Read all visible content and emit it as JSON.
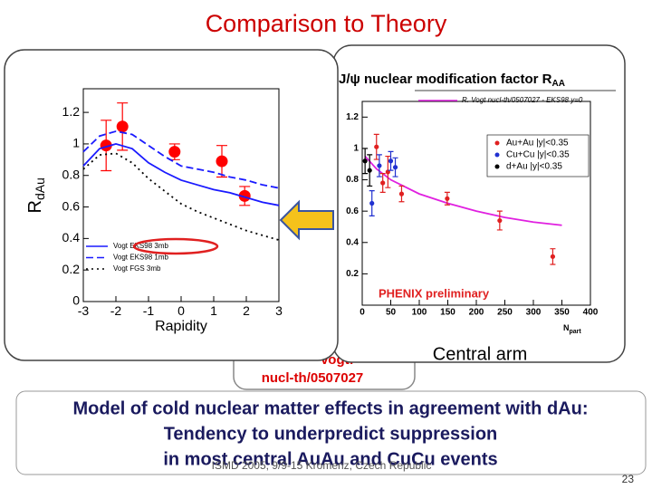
{
  "slide": {
    "title": "Comparison to Theory",
    "note_lines": [
      "Vogt:",
      "nucl-th/0507027"
    ],
    "arm": "Central arm",
    "body": [
      "Model of cold nuclear matter effects in agreement with dAu:",
      "Tendency to underpredict suppression",
      "in most central AuAu and CuCu events"
    ],
    "footer": "ISMD 2005, 9/9-15 Kromeriz, Czech Republic",
    "page": "23"
  },
  "chart_data": [
    {
      "type": "scatter",
      "y_label": "R",
      "y_label_sub": "dAu",
      "x_label": "Rapidity",
      "xlim": [
        -3,
        3
      ],
      "xticks": [
        -3,
        -2,
        -1,
        0,
        1,
        2,
        3
      ],
      "ylim": [
        0,
        1.35
      ],
      "yticks": [
        0,
        0.2,
        0.4,
        0.6,
        0.8,
        1,
        1.2
      ],
      "series": [
        {
          "color": "#ff0000",
          "style": "points",
          "x": [
            -2.3,
            -1.8,
            -0.2,
            1.25,
            1.95
          ],
          "values": [
            0.99,
            1.11,
            0.95,
            0.89,
            0.67
          ],
          "errors": [
            0.16,
            0.15,
            0.05,
            0.1,
            0.06
          ]
        },
        {
          "name": "Vogt EKS98 3mb",
          "color": "#1a1aff",
          "style": "solid",
          "x": [
            -3,
            -2.5,
            -2,
            -1.5,
            -1,
            -0.5,
            0,
            0.5,
            1,
            1.5,
            2,
            2.5,
            3
          ],
          "values": [
            0.86,
            0.97,
            1.0,
            0.97,
            0.88,
            0.82,
            0.77,
            0.74,
            0.71,
            0.69,
            0.66,
            0.63,
            0.61
          ]
        },
        {
          "name": "Vogt EKS98 1mb",
          "color": "#1a1aff",
          "style": "dashed",
          "x": [
            -3,
            -2.5,
            -2,
            -1.5,
            -1,
            -0.5,
            0,
            0.5,
            1,
            1.5,
            2,
            2.5,
            3
          ],
          "values": [
            0.95,
            1.05,
            1.08,
            1.06,
            0.99,
            0.92,
            0.86,
            0.84,
            0.82,
            0.79,
            0.77,
            0.74,
            0.72
          ]
        },
        {
          "name": "Vogt FGS 3mb",
          "color": "#000000",
          "style": "dotted",
          "x": [
            -3,
            -2.5,
            -2,
            -1.5,
            -1,
            -0.5,
            0,
            0.5,
            1,
            1.5,
            2,
            2.5,
            3
          ],
          "values": [
            0.84,
            0.93,
            0.94,
            0.88,
            0.78,
            0.7,
            0.62,
            0.57,
            0.53,
            0.49,
            0.45,
            0.42,
            0.39
          ]
        }
      ]
    },
    {
      "type": "scatter",
      "title": "J/ψ nuclear modification factor R",
      "title_sub": "AA",
      "x_label": "N",
      "x_label_sub": "part",
      "annotation": "PHENIX preliminary",
      "xlim": [
        0,
        400
      ],
      "xticks": [
        0,
        50,
        100,
        150,
        200,
        250,
        300,
        350,
        400
      ],
      "ylim": [
        0,
        1.3
      ],
      "yticks": [
        0.2,
        0.4,
        0.6,
        0.8,
        1,
        1.2
      ],
      "series": [
        {
          "name": "R. Vogt nucl-th/0507027 - EKS98 y=0",
          "color": "#e020e0",
          "style": "solid",
          "x": [
            5,
            25,
            50,
            100,
            150,
            200,
            250,
            300,
            350
          ],
          "values": [
            0.95,
            0.87,
            0.8,
            0.71,
            0.65,
            0.6,
            0.56,
            0.53,
            0.51
          ]
        },
        {
          "name": "Au+Au |y|<0.35",
          "color": "#e02020",
          "style": "points",
          "x": [
            25,
            36,
            45,
            69,
            149,
            241,
            334
          ],
          "values": [
            1.01,
            0.78,
            0.85,
            0.71,
            0.68,
            0.54,
            0.31
          ],
          "errors": [
            0.08,
            0.06,
            0.1,
            0.05,
            0.04,
            0.06,
            0.05
          ]
        },
        {
          "name": "Cu+Cu |y|<0.35",
          "color": "#2030d0",
          "style": "points",
          "x": [
            17,
            30,
            50,
            58
          ],
          "values": [
            0.65,
            0.89,
            0.92,
            0.88
          ],
          "errors": [
            0.08,
            0.07,
            0.06,
            0.06
          ]
        },
        {
          "name": "d+Au |y|<0.35",
          "color": "#000000",
          "style": "points",
          "x": [
            5,
            13
          ],
          "values": [
            0.92,
            0.86
          ],
          "errors": [
            0.08,
            0.1
          ]
        }
      ]
    }
  ]
}
